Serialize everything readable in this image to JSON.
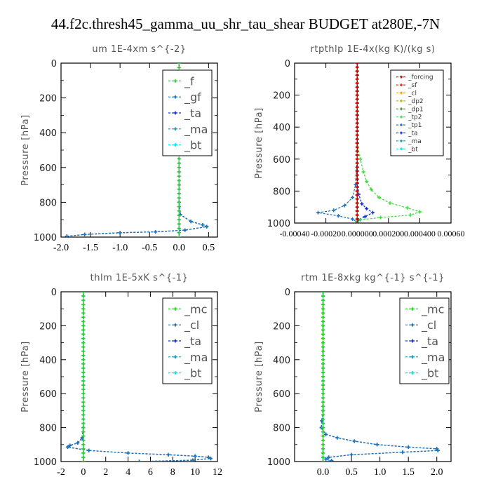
{
  "figure": {
    "suptitle": "44.f2c.thresh45_gamma_uu_shr_tau_shear  BUDGET at280E,-7N"
  },
  "chart_data": [
    {
      "type": "line",
      "title": "um   1E-4xm  s^{-2}",
      "ylabel": "Pressure [hPa]",
      "xlim": [
        -2.0,
        0.65
      ],
      "ylim": [
        1000,
        0
      ],
      "xticks": [
        -2.0,
        -1.5,
        -1.0,
        -0.5,
        0.0,
        0.5
      ],
      "xtick_labels": [
        "-2.0",
        "-1.5",
        "-1.0",
        "-0.5",
        "0.0",
        "0.5"
      ],
      "yticks": [
        0,
        200,
        400,
        600,
        800,
        1000
      ],
      "ytick_labels": [
        "0",
        "200",
        "400",
        "600",
        "800",
        "1000"
      ],
      "legend_position": "top-right",
      "legend_style": "big",
      "series": [
        {
          "name": "_f",
          "color": "#33cc33",
          "x": [
            0,
            0,
            0,
            0,
            0,
            0,
            0,
            0,
            0,
            0,
            0,
            0
          ],
          "y": [
            0,
            100,
            200,
            300,
            400,
            500,
            600,
            700,
            800,
            900,
            950,
            1000
          ]
        },
        {
          "name": "_gf",
          "color": "#1f77b4",
          "x": [
            0,
            0,
            0,
            0,
            0.02,
            0.2,
            0.4,
            0.47,
            0.1,
            -0.4,
            -1.0,
            -1.6,
            -1.9
          ],
          "y": [
            0,
            200,
            500,
            800,
            870,
            910,
            930,
            940,
            960,
            970,
            975,
            985,
            995
          ]
        },
        {
          "name": "_ta",
          "color": "#1a33dd",
          "x": [
            0,
            0,
            0,
            0,
            0.02,
            0.2,
            0.4,
            0.47,
            0.1,
            -0.4,
            -1.0,
            -1.6,
            -1.9
          ],
          "y": [
            0,
            200,
            500,
            800,
            870,
            910,
            930,
            940,
            960,
            970,
            975,
            985,
            995
          ]
        },
        {
          "name": "_ma",
          "color": "#2299bb",
          "x": [
            0,
            0,
            0,
            0,
            0,
            0,
            0,
            0,
            0
          ],
          "y": [
            0,
            200,
            400,
            600,
            800,
            900,
            950,
            980,
            1000
          ]
        },
        {
          "name": "_bt",
          "color": "#00e6e6",
          "x": [
            0,
            0,
            0,
            0,
            0,
            0,
            0,
            0,
            0
          ],
          "y": [
            0,
            200,
            400,
            600,
            800,
            900,
            950,
            980,
            1000
          ]
        }
      ]
    },
    {
      "type": "line",
      "title": "rtpthlp   1E-4x(kg K)/(kg s)",
      "ylabel": "Pressure [hPa]",
      "xlim": [
        -0.0004,
        0.0006
      ],
      "ylim": [
        1000,
        0
      ],
      "xticks": [
        -0.0004,
        -0.0002,
        0.0,
        0.0002,
        0.0004,
        0.0006
      ],
      "xtick_labels": [
        "-0.00040",
        "-0.00020",
        "0.000000",
        "0.000200",
        "0.000400",
        "0.00060"
      ],
      "yticks": [
        0,
        200,
        400,
        600,
        800,
        1000
      ],
      "ytick_labels": [
        "0",
        "200",
        "400",
        "600",
        "800",
        "1000"
      ],
      "legend_position": "top-right",
      "legend_style": "small",
      "series": [
        {
          "name": "_forcing",
          "color": "#cc0000",
          "x": [
            0,
            0,
            0,
            0,
            0,
            0
          ],
          "y": [
            0,
            200,
            400,
            600,
            800,
            1000
          ]
        },
        {
          "name": "_sf",
          "color": "#ee2222",
          "x": [
            0,
            0,
            0,
            0,
            0,
            0,
            0,
            0,
            0,
            0,
            0
          ],
          "y": [
            0,
            100,
            200,
            300,
            400,
            500,
            600,
            700,
            800,
            900,
            1000
          ]
        },
        {
          "name": "_cl",
          "color": "#ff9900",
          "x": [
            0,
            0,
            0,
            0
          ],
          "y": [
            0,
            400,
            800,
            1000
          ]
        },
        {
          "name": "_dp2",
          "color": "#bbbb00",
          "x": [
            0,
            0,
            0,
            0
          ],
          "y": [
            0,
            400,
            800,
            1000
          ]
        },
        {
          "name": "_dp1",
          "color": "#339933",
          "x": [
            0,
            0,
            0,
            0
          ],
          "y": [
            0,
            400,
            800,
            1000
          ]
        },
        {
          "name": "_tp2",
          "color": "#44dd44",
          "x": [
            0,
            0,
            2e-05,
            4e-05,
            6e-05,
            9e-05,
            0.00014,
            0.00021,
            0.00032,
            0.0004,
            0.00034,
            0.00015,
            2e-05,
            0,
            0
          ],
          "y": [
            0,
            500,
            600,
            680,
            740,
            790,
            840,
            875,
            905,
            930,
            950,
            965,
            980,
            990,
            1000
          ]
        },
        {
          "name": "_tp1",
          "color": "#1f77b4",
          "x": [
            0,
            0,
            -1e-05,
            -3e-05,
            -8e-05,
            -0.00015,
            -0.00025,
            -0.00012,
            -3e-05,
            0
          ],
          "y": [
            0,
            600,
            760,
            840,
            890,
            920,
            935,
            955,
            975,
            995
          ]
        },
        {
          "name": "_ta",
          "color": "#1a33dd",
          "x": [
            0,
            0,
            1e-05,
            3e-05,
            6e-05,
            0.0001,
            5e-05,
            1e-05,
            0
          ],
          "y": [
            0,
            700,
            820,
            880,
            910,
            935,
            960,
            980,
            995
          ]
        },
        {
          "name": "_ma",
          "color": "#2299bb",
          "x": [
            0,
            0,
            0,
            0
          ],
          "y": [
            0,
            400,
            800,
            1000
          ]
        },
        {
          "name": "_bt",
          "color": "#00e6e6",
          "x": [
            0,
            0,
            0,
            0
          ],
          "y": [
            0,
            400,
            800,
            1000
          ]
        }
      ]
    },
    {
      "type": "line",
      "title": "thlm   1E-5xK  s^{-1}",
      "ylabel": "Pressure [hPa]",
      "xlim": [
        -2.0,
        12.0
      ],
      "ylim": [
        1000,
        0
      ],
      "xticks": [
        -2,
        0,
        2,
        4,
        6,
        8,
        10,
        12
      ],
      "xtick_labels": [
        "-2",
        "0",
        "2",
        "4",
        "6",
        "8",
        "10",
        "12"
      ],
      "yticks": [
        0,
        200,
        400,
        600,
        800,
        1000
      ],
      "ytick_labels": [
        "0",
        "200",
        "400",
        "600",
        "800",
        "1000"
      ],
      "legend_position": "top-right",
      "legend_style": "big",
      "series": [
        {
          "name": "_mc",
          "color": "#33cc33",
          "x": [
            0,
            0,
            0,
            0,
            0,
            0,
            0,
            0,
            0,
            0,
            0,
            0
          ],
          "y": [
            0,
            100,
            200,
            300,
            400,
            500,
            600,
            700,
            800,
            900,
            950,
            1000
          ]
        },
        {
          "name": "_cl",
          "color": "#1f77b4",
          "x": [
            0,
            0,
            0,
            -0.1,
            -0.5,
            -1.2,
            -1.4,
            0.5,
            4.0,
            7.6,
            10.0,
            11.2,
            11.4,
            9.8,
            5.0
          ],
          "y": [
            0,
            400,
            800,
            860,
            890,
            905,
            915,
            935,
            950,
            960,
            968,
            975,
            982,
            992,
            1000
          ]
        },
        {
          "name": "_ta",
          "color": "#1a33dd",
          "x": [
            0,
            0,
            0,
            -0.1,
            -0.5,
            -1.2,
            -1.4,
            0.5,
            4.0,
            7.6,
            10.0,
            11.2,
            11.4,
            9.8,
            5.0
          ],
          "y": [
            0,
            400,
            800,
            860,
            890,
            905,
            915,
            935,
            950,
            960,
            968,
            975,
            982,
            992,
            1000
          ]
        },
        {
          "name": "_ma",
          "color": "#2299bb",
          "x": [
            0,
            0,
            0,
            0,
            0
          ],
          "y": [
            0,
            250,
            500,
            750,
            1000
          ]
        },
        {
          "name": "_bt",
          "color": "#00e6e6",
          "x": [
            0,
            0,
            0,
            0,
            0
          ],
          "y": [
            0,
            250,
            500,
            750,
            1000
          ]
        }
      ]
    },
    {
      "type": "line",
      "title": "rtm   1E-8xkg  kg^{-1} s^{-1}",
      "ylabel": "Pressure [hPa]",
      "xlim": [
        -0.5,
        2.25
      ],
      "ylim": [
        1000,
        0
      ],
      "xticks": [
        0.0,
        0.5,
        1.0,
        1.5,
        2.0
      ],
      "xtick_labels": [
        "0.0",
        "0.5",
        "1.0",
        "1.5",
        "2.0"
      ],
      "yticks": [
        0,
        200,
        400,
        600,
        800,
        1000
      ],
      "ytick_labels": [
        "0",
        "200",
        "400",
        "600",
        "800",
        "1000"
      ],
      "legend_position": "top-right",
      "legend_style": "big",
      "series": [
        {
          "name": "_mc",
          "color": "#33cc33",
          "x": [
            0,
            0,
            0,
            0,
            0,
            0,
            0,
            0,
            0,
            0,
            0,
            0
          ],
          "y": [
            0,
            100,
            200,
            300,
            400,
            500,
            600,
            700,
            800,
            900,
            950,
            1000
          ]
        },
        {
          "name": "_cl",
          "color": "#1f77b4",
          "x": [
            0,
            0,
            -0.02,
            -0.03,
            0.05,
            0.25,
            0.55,
            0.95,
            1.5,
            2.0,
            2.02,
            1.4,
            0.5,
            0.1,
            0.05,
            0.15,
            0.0
          ],
          "y": [
            0,
            700,
            760,
            800,
            840,
            860,
            880,
            900,
            915,
            925,
            935,
            945,
            960,
            975,
            985,
            995,
            1000
          ]
        },
        {
          "name": "_ta",
          "color": "#1a33dd",
          "x": [
            0,
            0,
            -0.02,
            -0.03,
            0.05,
            0.25,
            0.55,
            0.95,
            1.5,
            2.0,
            2.02,
            1.4,
            0.5,
            0.1,
            0.05,
            0.15,
            0.0
          ],
          "y": [
            0,
            700,
            760,
            800,
            840,
            860,
            880,
            900,
            915,
            925,
            935,
            945,
            960,
            975,
            985,
            995,
            1000
          ]
        },
        {
          "name": "_ma",
          "color": "#2299bb",
          "x": [
            0,
            0,
            0,
            0,
            0
          ],
          "y": [
            0,
            250,
            500,
            750,
            1000
          ]
        },
        {
          "name": "_bt",
          "color": "#00e6e6",
          "x": [
            0,
            0,
            0,
            0,
            0
          ],
          "y": [
            0,
            250,
            500,
            750,
            1000
          ]
        }
      ]
    }
  ]
}
